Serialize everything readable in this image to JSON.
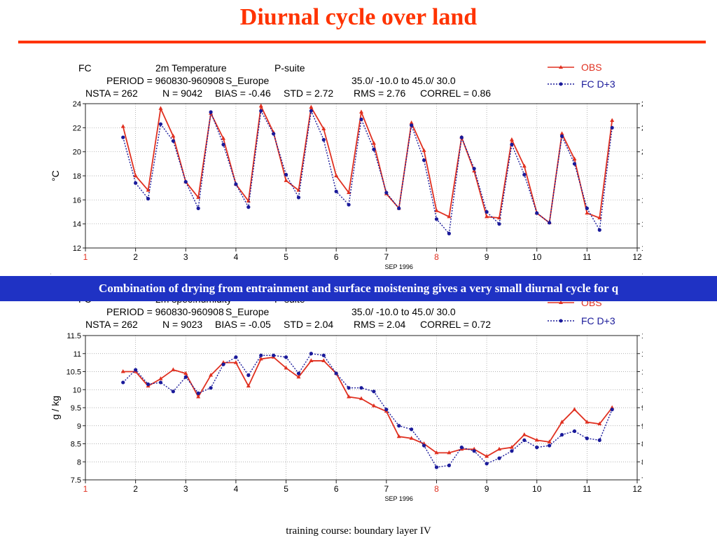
{
  "slide": {
    "title": "Diurnal cycle over land",
    "banner": "Combination of drying from entrainment and surface moistening gives a very small diurnal cycle for q",
    "footer": "training course: boundary layer IV"
  },
  "colors": {
    "title": "#ff3300",
    "obs": "#e03020",
    "fc": "#1a1a9a",
    "banner": "#1f32c4"
  },
  "chart_data": [
    {
      "type": "line",
      "header": {
        "line1": [
          "FC",
          "2m Temperature",
          "P-suite"
        ],
        "line2": [
          "PERIOD = 960830-960908",
          "S_Europe",
          "35.0/ -10.0  to  45.0/  30.0"
        ],
        "line3": [
          "NSTA =  262",
          "N =  9042",
          "BIAS = -0.46",
          "STD = 2.72",
          "RMS = 2.76",
          "CORREL = 0.86"
        ]
      },
      "ylabel": "°C",
      "xlabel": "SEP 1996",
      "ylim": [
        12,
        24
      ],
      "yticks": [
        12,
        14,
        16,
        18,
        20,
        22,
        24
      ],
      "xlim": [
        1,
        12
      ],
      "xticks": [
        "1",
        "2",
        "3",
        "4",
        "5",
        "6",
        "7",
        "8",
        "9",
        "10",
        "11",
        "12"
      ],
      "highlight_ticks": [
        "1",
        "8"
      ],
      "grid": true,
      "legend_position": "top-right",
      "series": [
        {
          "name": "OBS",
          "color": "#e03020",
          "marker": "triangle",
          "x": [
            1.75,
            2.0,
            2.25,
            2.5,
            2.75,
            3.0,
            3.25,
            3.5,
            3.75,
            4.0,
            4.25,
            4.5,
            4.75,
            5.0,
            5.25,
            5.5,
            5.75,
            6.0,
            6.25,
            6.5,
            6.75,
            7.0,
            7.25,
            7.5,
            7.75,
            8.0,
            8.25,
            8.5,
            8.75,
            9.0,
            9.25,
            9.5,
            9.75,
            10.0,
            10.25,
            10.5,
            10.75,
            11.0,
            11.25,
            11.5
          ],
          "y": [
            22.1,
            18.0,
            16.8,
            23.6,
            21.3,
            17.5,
            16.2,
            23.2,
            21.1,
            17.3,
            15.9,
            23.8,
            21.6,
            17.6,
            16.8,
            23.7,
            21.9,
            18.0,
            16.6,
            23.3,
            20.7,
            16.5,
            15.3,
            22.4,
            20.1,
            15.1,
            14.6,
            21.2,
            18.4,
            14.6,
            14.5,
            21.0,
            18.8,
            14.9,
            14.1,
            21.5,
            19.4,
            14.9,
            14.5,
            22.6
          ]
        },
        {
          "name": "FC  D+3",
          "color": "#1a1a9a",
          "marker": "circle",
          "x": [
            1.75,
            2.0,
            2.25,
            2.5,
            2.75,
            3.0,
            3.25,
            3.5,
            3.75,
            4.0,
            4.25,
            4.5,
            4.75,
            5.0,
            5.25,
            5.5,
            5.75,
            6.0,
            6.25,
            6.5,
            6.75,
            7.0,
            7.25,
            7.5,
            7.75,
            8.0,
            8.25,
            8.5,
            8.75,
            9.0,
            9.25,
            9.5,
            9.75,
            10.0,
            10.25,
            10.5,
            10.75,
            11.0,
            11.25,
            11.5
          ],
          "y": [
            21.2,
            17.4,
            16.1,
            22.3,
            20.9,
            17.5,
            15.3,
            23.3,
            20.6,
            17.3,
            15.4,
            23.4,
            21.5,
            18.1,
            16.2,
            23.4,
            21.0,
            16.7,
            15.6,
            22.7,
            20.2,
            16.6,
            15.3,
            22.2,
            19.3,
            14.4,
            13.2,
            21.2,
            18.6,
            15.0,
            14.0,
            20.6,
            18.1,
            14.9,
            14.1,
            21.3,
            19.0,
            15.3,
            13.5,
            22.0
          ]
        }
      ]
    },
    {
      "type": "line",
      "header": {
        "line1": [
          "FC",
          "2m spec.humidity",
          "P-suite"
        ],
        "line2": [
          "PERIOD = 960830-960908",
          "S_Europe",
          "35.0/ -10.0  to  45.0/  30.0"
        ],
        "line3": [
          "NSTA =  262",
          "N =  9023",
          "BIAS = -0.05",
          "STD = 2.04",
          "RMS = 2.04",
          "CORREL = 0.72"
        ]
      },
      "ylabel": "g / kg",
      "xlabel": "SEP 1996",
      "ylim": [
        7.5,
        11.5
      ],
      "yticks": [
        7.5,
        8,
        8.5,
        9,
        9.5,
        10,
        10.5,
        11,
        11.5
      ],
      "xlim": [
        1,
        12
      ],
      "xticks": [
        "1",
        "2",
        "3",
        "4",
        "5",
        "6",
        "7",
        "8",
        "9",
        "10",
        "11",
        "12"
      ],
      "highlight_ticks": [
        "1",
        "8"
      ],
      "grid": true,
      "legend_position": "top-right",
      "series": [
        {
          "name": "OBS",
          "color": "#e03020",
          "marker": "triangle",
          "x": [
            1.75,
            2.0,
            2.25,
            2.5,
            2.75,
            3.0,
            3.25,
            3.5,
            3.75,
            4.0,
            4.25,
            4.5,
            4.75,
            5.0,
            5.25,
            5.5,
            5.75,
            6.0,
            6.25,
            6.5,
            6.75,
            7.0,
            7.25,
            7.5,
            7.75,
            8.0,
            8.25,
            8.5,
            8.75,
            9.0,
            9.25,
            9.5,
            9.75,
            10.0,
            10.25,
            10.5,
            10.75,
            11.0,
            11.25,
            11.5
          ],
          "y": [
            10.5,
            10.5,
            10.1,
            10.3,
            10.55,
            10.45,
            9.8,
            10.4,
            10.75,
            10.75,
            10.1,
            10.85,
            10.9,
            10.6,
            10.35,
            10.8,
            10.8,
            10.45,
            9.8,
            9.75,
            9.55,
            9.4,
            8.7,
            8.65,
            8.5,
            8.25,
            8.25,
            8.35,
            8.35,
            8.15,
            8.35,
            8.4,
            8.75,
            8.6,
            8.55,
            9.1,
            9.45,
            9.1,
            9.05,
            9.5
          ]
        },
        {
          "name": "FC  D+3",
          "color": "#1a1a9a",
          "marker": "circle",
          "x": [
            1.75,
            2.0,
            2.25,
            2.5,
            2.75,
            3.0,
            3.25,
            3.5,
            3.75,
            4.0,
            4.25,
            4.5,
            4.75,
            5.0,
            5.25,
            5.5,
            5.75,
            6.0,
            6.25,
            6.5,
            6.75,
            7.0,
            7.25,
            7.5,
            7.75,
            8.0,
            8.25,
            8.5,
            8.75,
            9.0,
            9.25,
            9.5,
            9.75,
            10.0,
            10.25,
            10.5,
            10.75,
            11.0,
            11.25,
            11.5
          ],
          "y": [
            10.2,
            10.55,
            10.15,
            10.2,
            9.95,
            10.35,
            9.9,
            10.05,
            10.7,
            10.9,
            10.4,
            10.95,
            10.95,
            10.9,
            10.45,
            11.0,
            10.95,
            10.45,
            10.05,
            10.05,
            9.95,
            9.45,
            9.0,
            8.9,
            8.45,
            7.85,
            7.9,
            8.4,
            8.3,
            7.95,
            8.1,
            8.3,
            8.6,
            8.4,
            8.45,
            8.75,
            8.85,
            8.65,
            8.6,
            9.45
          ]
        }
      ]
    }
  ]
}
